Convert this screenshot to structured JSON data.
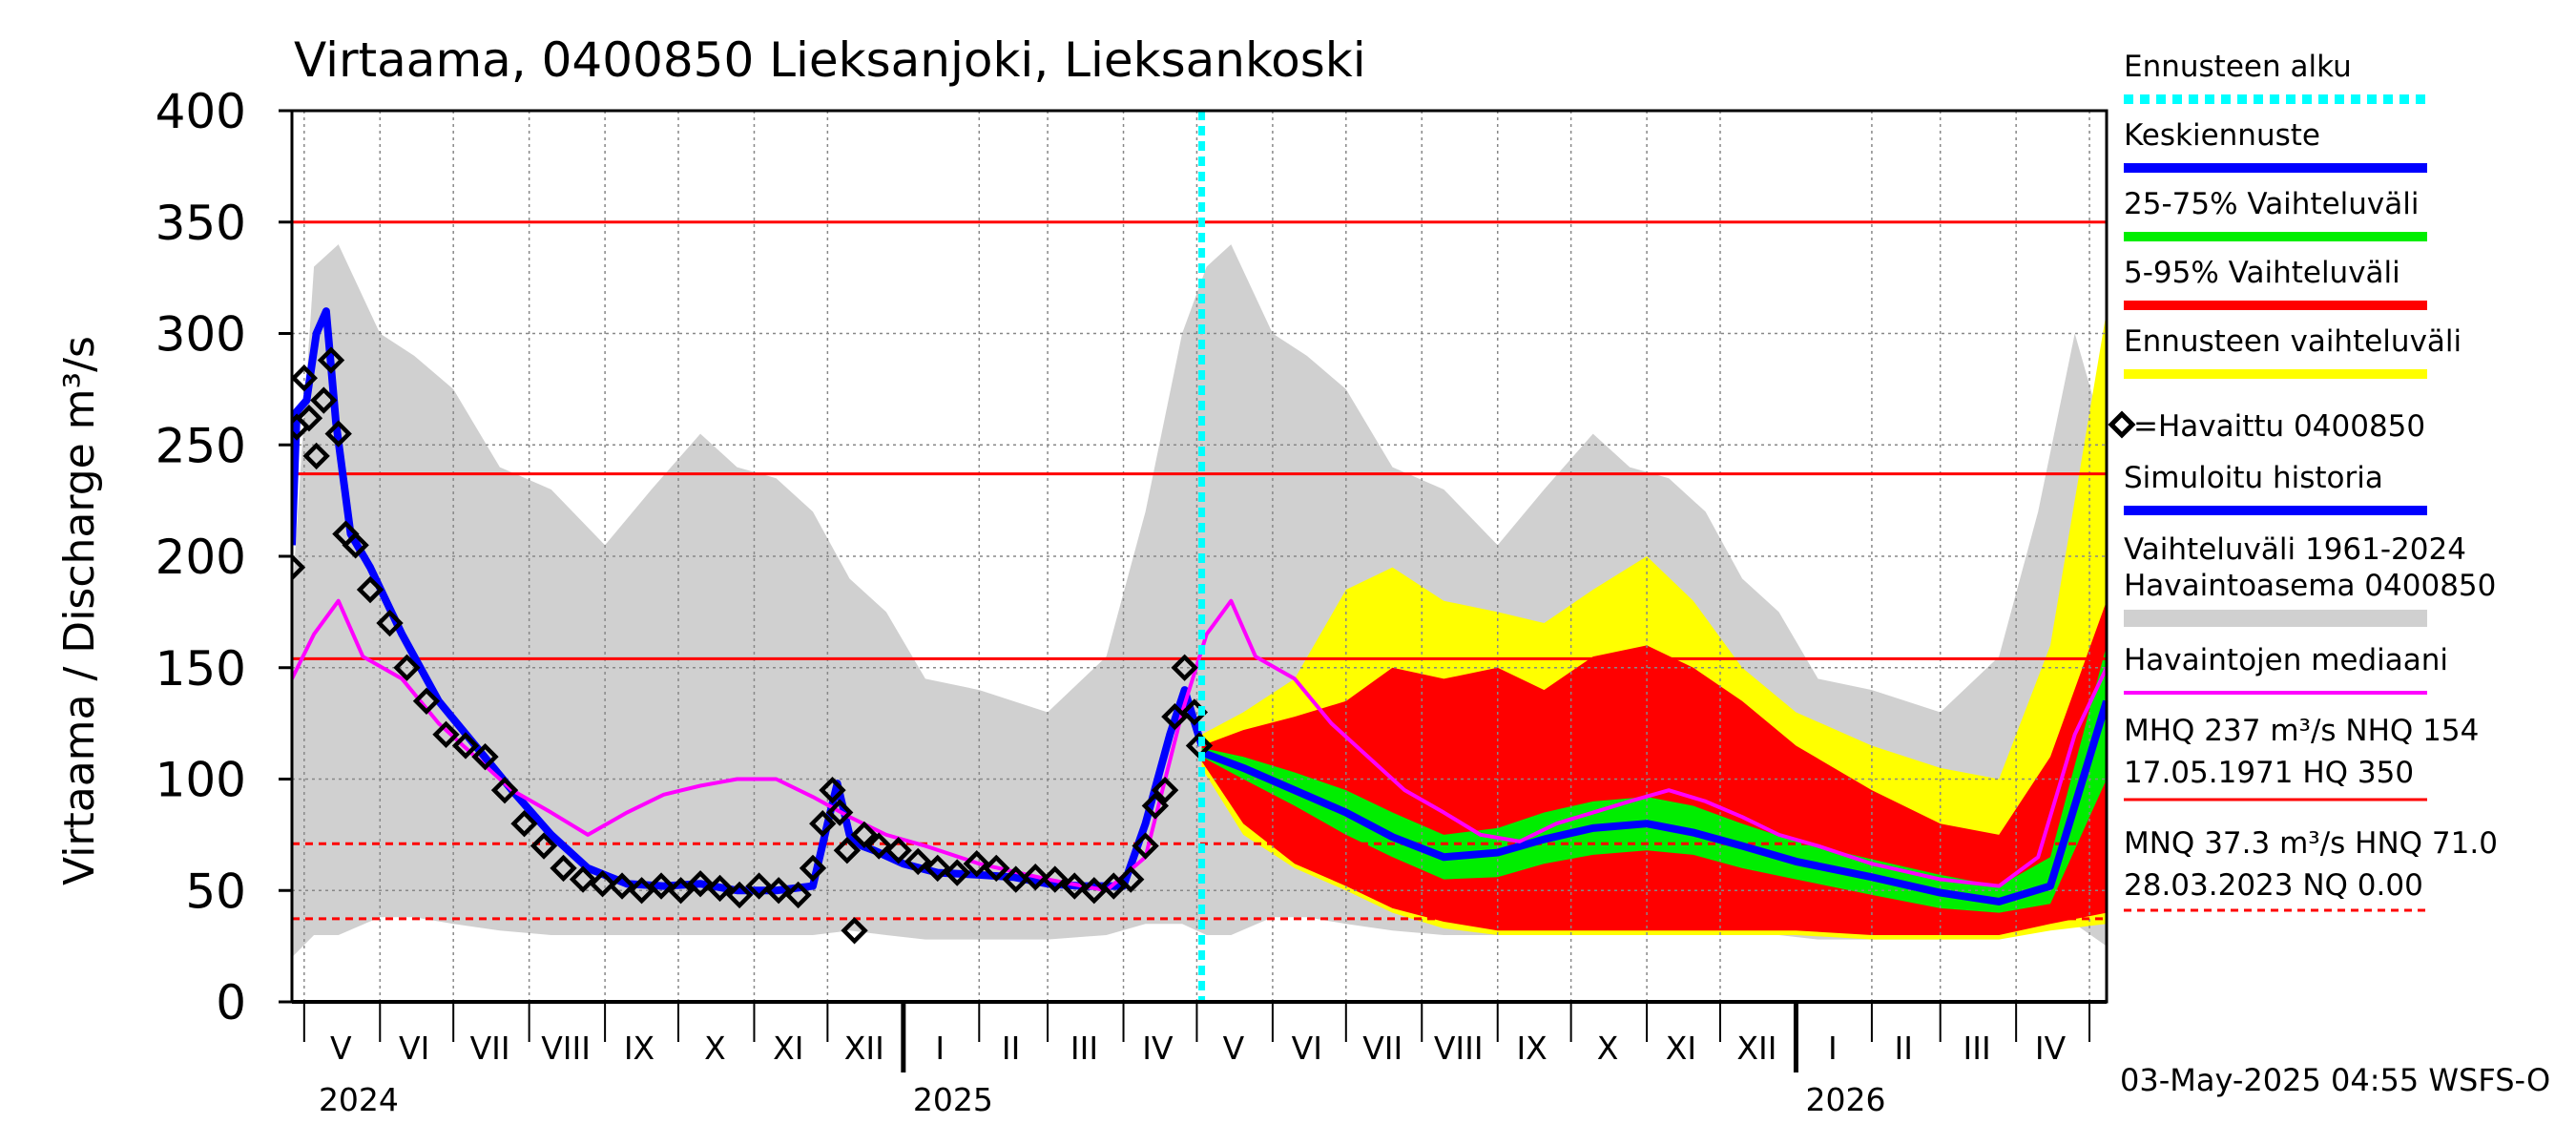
{
  "chart_data": {
    "type": "area",
    "title": "Virtaama, 0400850 Lieksanjoki, Lieksankoski",
    "ylabel": "Virtaama / Discharge    m³/s",
    "ylim": [
      0,
      400
    ],
    "yticks": [
      0,
      50,
      100,
      150,
      200,
      250,
      300,
      350,
      400
    ],
    "xlim": [
      "2024-04-26",
      "2026-05-08"
    ],
    "month_labels": [
      {
        "label": "V",
        "date": "2024-05-16"
      },
      {
        "label": "VI",
        "date": "2024-06-15"
      },
      {
        "label": "VII",
        "date": "2024-07-16"
      },
      {
        "label": "VIII",
        "date": "2024-08-16"
      },
      {
        "label": "IX",
        "date": "2024-09-15"
      },
      {
        "label": "X",
        "date": "2024-10-16"
      },
      {
        "label": "XI",
        "date": "2024-11-15"
      },
      {
        "label": "XII",
        "date": "2024-12-16"
      },
      {
        "label": "I",
        "date": "2025-01-16"
      },
      {
        "label": "II",
        "date": "2025-02-14"
      },
      {
        "label": "III",
        "date": "2025-03-16"
      },
      {
        "label": "IV",
        "date": "2025-04-15"
      },
      {
        "label": "V",
        "date": "2025-05-16"
      },
      {
        "label": "VI",
        "date": "2025-06-15"
      },
      {
        "label": "VII",
        "date": "2025-07-16"
      },
      {
        "label": "VIII",
        "date": "2025-08-16"
      },
      {
        "label": "IX",
        "date": "2025-09-15"
      },
      {
        "label": "X",
        "date": "2025-10-16"
      },
      {
        "label": "XI",
        "date": "2025-11-15"
      },
      {
        "label": "XII",
        "date": "2025-12-16"
      },
      {
        "label": "I",
        "date": "2026-01-16"
      },
      {
        "label": "II",
        "date": "2026-02-14"
      },
      {
        "label": "III",
        "date": "2026-03-16"
      },
      {
        "label": "IV",
        "date": "2026-04-15"
      }
    ],
    "year_labels": [
      {
        "label": "2024",
        "date": "2024-05-03"
      },
      {
        "label": "2025",
        "date": "2025-01-01"
      },
      {
        "label": "2026",
        "date": "2026-01-01"
      }
    ],
    "forecast_start": "2025-05-03",
    "reference_lines": [
      {
        "name": "HQ",
        "value": 350,
        "style": "solid"
      },
      {
        "name": "MHQ",
        "value": 237,
        "style": "solid"
      },
      {
        "name": "NHQ",
        "value": 154,
        "style": "solid"
      },
      {
        "name": "HNQ",
        "value": 71.0,
        "style": "dashed"
      },
      {
        "name": "MNQ",
        "value": 37.3,
        "style": "dashed"
      },
      {
        "name": "NQ",
        "value": 0.0,
        "style": "dashed"
      }
    ],
    "series": [
      {
        "name": "Vaihteluväli 1961-2024 Havaintoasema 0400850",
        "kind": "band",
        "color": "#d0d0d0",
        "x": [
          "2024-04-26",
          "2024-05-05",
          "2024-05-15",
          "2024-06-01",
          "2024-06-15",
          "2024-07-01",
          "2024-07-20",
          "2024-08-10",
          "2024-09-01",
          "2024-09-20",
          "2024-10-10",
          "2024-10-25",
          "2024-11-10",
          "2024-11-25",
          "2024-12-10",
          "2024-12-25",
          "2025-01-10",
          "2025-02-01",
          "2025-03-01",
          "2025-03-25",
          "2025-04-10",
          "2025-04-25",
          "2025-05-05",
          "2025-05-15",
          "2025-06-01",
          "2025-06-15",
          "2025-07-01",
          "2025-07-20",
          "2025-08-10",
          "2025-09-01",
          "2025-09-20",
          "2025-10-10",
          "2025-10-25",
          "2025-11-10",
          "2025-11-25",
          "2025-12-10",
          "2025-12-25",
          "2026-01-10",
          "2026-02-01",
          "2026-03-01",
          "2026-03-25",
          "2026-04-10",
          "2026-04-25",
          "2026-05-08"
        ],
        "low": [
          20,
          30,
          30,
          38,
          38,
          35,
          32,
          30,
          30,
          30,
          30,
          30,
          30,
          30,
          32,
          30,
          28,
          28,
          28,
          30,
          35,
          35,
          30,
          30,
          38,
          38,
          35,
          32,
          30,
          30,
          30,
          30,
          30,
          30,
          30,
          32,
          30,
          28,
          28,
          28,
          30,
          35,
          35,
          25
        ],
        "high": [
          180,
          330,
          340,
          300,
          290,
          275,
          240,
          230,
          205,
          230,
          255,
          240,
          235,
          220,
          190,
          175,
          145,
          140,
          130,
          155,
          220,
          300,
          330,
          340,
          300,
          290,
          275,
          240,
          230,
          205,
          230,
          255,
          240,
          235,
          220,
          190,
          175,
          145,
          140,
          130,
          155,
          220,
          300,
          250
        ]
      },
      {
        "name": "Ennusteen vaihteluväli",
        "kind": "band",
        "color": "#ffff00",
        "x": [
          "2025-05-03",
          "2025-05-20",
          "2025-06-10",
          "2025-07-01",
          "2025-07-20",
          "2025-08-10",
          "2025-09-01",
          "2025-09-20",
          "2025-10-10",
          "2025-11-01",
          "2025-11-20",
          "2025-12-10",
          "2026-01-01",
          "2026-02-01",
          "2026-03-01",
          "2026-03-25",
          "2026-04-15",
          "2026-05-08"
        ],
        "low": [
          105,
          75,
          60,
          50,
          40,
          33,
          30,
          30,
          30,
          30,
          30,
          30,
          30,
          28,
          28,
          28,
          32,
          35
        ],
        "high": [
          120,
          130,
          145,
          185,
          195,
          180,
          175,
          170,
          185,
          200,
          180,
          150,
          130,
          115,
          105,
          100,
          160,
          310
        ]
      },
      {
        "name": "5-95% Vaihteluväli",
        "kind": "band",
        "color": "#ff0000",
        "x": [
          "2025-05-03",
          "2025-05-20",
          "2025-06-10",
          "2025-07-01",
          "2025-07-20",
          "2025-08-10",
          "2025-09-01",
          "2025-09-20",
          "2025-10-10",
          "2025-11-01",
          "2025-11-20",
          "2025-12-10",
          "2026-01-01",
          "2026-02-01",
          "2026-03-01",
          "2026-03-25",
          "2026-04-15",
          "2026-05-08"
        ],
        "low": [
          108,
          80,
          62,
          52,
          42,
          36,
          32,
          32,
          32,
          32,
          32,
          32,
          32,
          30,
          30,
          30,
          35,
          40
        ],
        "high": [
          115,
          122,
          128,
          135,
          150,
          145,
          150,
          140,
          155,
          160,
          150,
          135,
          115,
          95,
          80,
          75,
          110,
          180
        ]
      },
      {
        "name": "25-75% Vaihteluväli",
        "kind": "band",
        "color": "#00ee00",
        "x": [
          "2025-05-03",
          "2025-05-20",
          "2025-06-10",
          "2025-07-01",
          "2025-07-20",
          "2025-08-10",
          "2025-09-01",
          "2025-09-20",
          "2025-10-10",
          "2025-11-01",
          "2025-11-20",
          "2025-12-10",
          "2026-01-01",
          "2026-02-01",
          "2026-03-01",
          "2026-03-25",
          "2026-04-15",
          "2026-05-08"
        ],
        "low": [
          110,
          100,
          88,
          75,
          65,
          55,
          56,
          62,
          66,
          68,
          66,
          60,
          55,
          48,
          42,
          40,
          44,
          100
        ],
        "high": [
          114,
          110,
          103,
          95,
          85,
          75,
          78,
          85,
          90,
          92,
          88,
          80,
          72,
          64,
          57,
          52,
          65,
          160
        ]
      },
      {
        "name": "Keskiennuste",
        "kind": "line",
        "color": "#0000ff",
        "x": [
          "2025-05-03",
          "2025-05-20",
          "2025-06-10",
          "2025-07-01",
          "2025-07-20",
          "2025-08-10",
          "2025-09-01",
          "2025-09-20",
          "2025-10-10",
          "2025-11-01",
          "2025-11-20",
          "2025-12-10",
          "2026-01-01",
          "2026-02-01",
          "2026-03-01",
          "2026-03-25",
          "2026-04-15",
          "2026-05-08"
        ],
        "y": [
          112,
          105,
          95,
          85,
          74,
          65,
          67,
          73,
          78,
          80,
          76,
          70,
          63,
          56,
          49,
          45,
          52,
          135
        ]
      },
      {
        "name": "Simuloitu historia",
        "kind": "line",
        "color": "#0000ff",
        "x": [
          "2024-04-26",
          "2024-04-28",
          "2024-05-02",
          "2024-05-06",
          "2024-05-10",
          "2024-05-14",
          "2024-05-20",
          "2024-05-28",
          "2024-06-10",
          "2024-06-25",
          "2024-07-10",
          "2024-07-25",
          "2024-08-10",
          "2024-08-25",
          "2024-09-10",
          "2024-09-25",
          "2024-10-10",
          "2024-10-25",
          "2024-11-10",
          "2024-11-25",
          "2024-12-01",
          "2024-12-05",
          "2024-12-10",
          "2024-12-15",
          "2024-12-20",
          "2025-01-01",
          "2025-01-15",
          "2025-02-01",
          "2025-02-15",
          "2025-03-01",
          "2025-03-15",
          "2025-04-01",
          "2025-04-10",
          "2025-04-20",
          "2025-04-26",
          "2025-05-03"
        ],
        "y": [
          205,
          265,
          270,
          300,
          310,
          260,
          210,
          195,
          165,
          135,
          115,
          95,
          75,
          60,
          53,
          52,
          53,
          50,
          50,
          52,
          80,
          98,
          75,
          70,
          68,
          62,
          58,
          57,
          56,
          53,
          52,
          52,
          80,
          120,
          140,
          115
        ]
      },
      {
        "name": "Havaintojen mediaani",
        "kind": "line",
        "color": "#ff00ff",
        "x": [
          "2024-04-26",
          "2024-05-05",
          "2024-05-15",
          "2024-05-25",
          "2024-06-10",
          "2024-06-25",
          "2024-07-10",
          "2024-07-25",
          "2024-08-10",
          "2024-08-25",
          "2024-09-10",
          "2024-09-25",
          "2024-10-10",
          "2024-10-25",
          "2024-11-10",
          "2024-11-25",
          "2024-12-10",
          "2024-12-25",
          "2025-01-10",
          "2025-02-01",
          "2025-03-01",
          "2025-03-25",
          "2025-04-10",
          "2025-04-25",
          "2025-05-05",
          "2025-05-15",
          "2025-05-25",
          "2025-06-10",
          "2025-06-25",
          "2025-07-10",
          "2025-07-25",
          "2025-08-10",
          "2025-08-25",
          "2025-09-10",
          "2025-09-25",
          "2025-10-10",
          "2025-10-25",
          "2025-11-10",
          "2025-11-25",
          "2025-12-10",
          "2025-12-25",
          "2026-01-10",
          "2026-02-01",
          "2026-03-01",
          "2026-03-25",
          "2026-04-10",
          "2026-04-25",
          "2026-05-08"
        ],
        "y": [
          145,
          165,
          180,
          155,
          145,
          125,
          110,
          95,
          85,
          75,
          85,
          93,
          97,
          100,
          100,
          92,
          83,
          75,
          70,
          62,
          55,
          50,
          65,
          130,
          165,
          180,
          155,
          145,
          125,
          110,
          95,
          85,
          75,
          72,
          80,
          85,
          90,
          95,
          90,
          83,
          75,
          70,
          62,
          55,
          52,
          65,
          120,
          150
        ]
      },
      {
        "name": "=Havaittu 0400850",
        "kind": "scatter",
        "color": "#000000",
        "x": [
          "2024-04-26",
          "2024-04-28",
          "2024-05-01",
          "2024-05-03",
          "2024-05-06",
          "2024-05-09",
          "2024-05-12",
          "2024-05-15",
          "2024-05-18",
          "2024-05-22",
          "2024-05-28",
          "2024-06-05",
          "2024-06-12",
          "2024-06-20",
          "2024-06-28",
          "2024-07-06",
          "2024-07-14",
          "2024-07-22",
          "2024-07-30",
          "2024-08-07",
          "2024-08-15",
          "2024-08-23",
          "2024-08-31",
          "2024-09-08",
          "2024-09-16",
          "2024-09-24",
          "2024-10-02",
          "2024-10-10",
          "2024-10-18",
          "2024-10-26",
          "2024-11-03",
          "2024-11-11",
          "2024-11-19",
          "2024-11-25",
          "2024-11-29",
          "2024-12-03",
          "2024-12-06",
          "2024-12-09",
          "2024-12-12",
          "2024-12-16",
          "2024-12-22",
          "2024-12-30",
          "2025-01-07",
          "2025-01-15",
          "2025-01-23",
          "2025-01-31",
          "2025-02-08",
          "2025-02-16",
          "2025-02-24",
          "2025-03-04",
          "2025-03-12",
          "2025-03-20",
          "2025-03-28",
          "2025-04-04",
          "2025-04-10",
          "2025-04-14",
          "2025-04-18",
          "2025-04-22",
          "2025-04-26",
          "2025-04-30",
          "2025-05-02"
        ],
        "y": [
          195,
          258,
          280,
          262,
          245,
          270,
          288,
          255,
          210,
          205,
          185,
          170,
          150,
          135,
          120,
          115,
          110,
          95,
          80,
          70,
          60,
          55,
          53,
          52,
          50,
          52,
          50,
          53,
          51,
          48,
          52,
          50,
          48,
          60,
          80,
          95,
          85,
          68,
          32,
          75,
          70,
          68,
          63,
          60,
          58,
          62,
          60,
          55,
          56,
          55,
          52,
          50,
          52,
          55,
          70,
          88,
          95,
          128,
          150,
          130,
          115
        ]
      }
    ]
  },
  "legend": {
    "items": [
      {
        "label": "Ennusteen alku",
        "color": "#00ffff",
        "style": "dotted"
      },
      {
        "label": "Keskiennuste",
        "color": "#0000ff",
        "style": "line"
      },
      {
        "label": "25-75% Vaihteluväli",
        "color": "#00ee00",
        "style": "line"
      },
      {
        "label": "5-95% Vaihteluväli",
        "color": "#ff0000",
        "style": "line"
      },
      {
        "label": "Ennusteen vaihteluväli",
        "color": "#ffff00",
        "style": "line"
      },
      {
        "label": "=Havaittu 0400850",
        "color": "#000000",
        "style": "marker"
      },
      {
        "label": "Simuloitu historia",
        "color": "#0000ff",
        "style": "line"
      },
      {
        "label": "Vaihteluväli 1961-2024",
        "label2": " Havaintoasema 0400850",
        "color": "#d0d0d0",
        "style": "thick"
      },
      {
        "label": "Havaintojen mediaani",
        "color": "#ff00ff",
        "style": "line"
      }
    ],
    "stats_high_1": "MHQ  237 m³/s NHQ  154",
    "stats_high_2": "17.05.1971 HQ  350",
    "stats_low_1": "MNQ 37.3 m³/s HNQ 71.0",
    "stats_low_2": "28.03.2023 NQ 0.00"
  },
  "footer": "03-May-2025 04:55 WSFS-O",
  "colors": {
    "reference_line": "#ff0000",
    "forecast_start": "#00ffff",
    "grid": "#888888"
  }
}
